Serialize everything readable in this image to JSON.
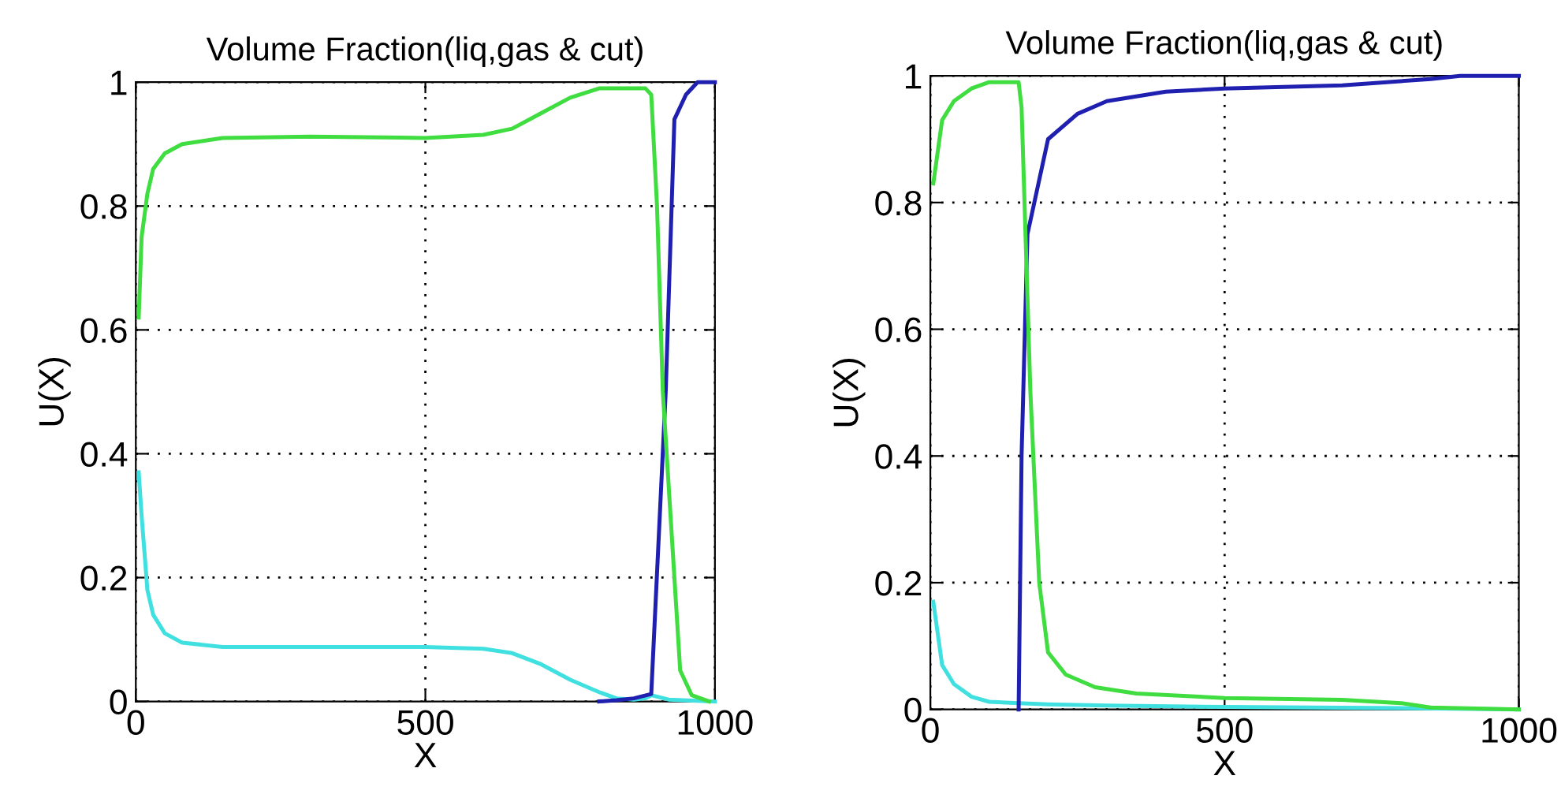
{
  "chart_data": [
    {
      "type": "line",
      "title": "Volume Fraction(liq,gas & cut)",
      "xlabel": "X",
      "ylabel": "U(X)",
      "xlim": [
        0,
        1000
      ],
      "ylim": [
        0,
        1
      ],
      "xticks": [
        0,
        500,
        1000
      ],
      "yticks": [
        0,
        0.2,
        0.4,
        0.6,
        0.8,
        1
      ],
      "grid": true,
      "line_style": "solid",
      "series": [
        {
          "color": "#40e0e0",
          "x": [
            5,
            10,
            20,
            30,
            50,
            80,
            150,
            500,
            600,
            650,
            700,
            750,
            800,
            830,
            860,
            880,
            890,
            920,
            1000
          ],
          "values": [
            0.37,
            0.3,
            0.18,
            0.14,
            0.11,
            0.095,
            0.088,
            0.088,
            0.085,
            0.078,
            0.06,
            0.035,
            0.015,
            0.005,
            0.003,
            0.005,
            0.01,
            0.003,
            0
          ]
        },
        {
          "color": "#2020b0",
          "x": [
            800,
            830,
            860,
            890,
            915,
            930,
            950,
            970,
            1000
          ],
          "values": [
            0,
            0.002,
            0.005,
            0.012,
            0.5,
            0.94,
            0.98,
            1,
            1
          ]
        },
        {
          "color": "#40dd40",
          "x": [
            5,
            10,
            20,
            30,
            50,
            80,
            150,
            300,
            500,
            600,
            650,
            700,
            750,
            800,
            880,
            890,
            900,
            910,
            930,
            940,
            960,
            990
          ],
          "values": [
            0.62,
            0.75,
            0.82,
            0.86,
            0.885,
            0.9,
            0.91,
            0.912,
            0.91,
            0.915,
            0.925,
            0.95,
            0.975,
            0.99,
            0.99,
            0.98,
            0.8,
            0.5,
            0.2,
            0.05,
            0.01,
            0
          ]
        }
      ]
    },
    {
      "type": "line",
      "title": "Volume Fraction(liq,gas & cut)",
      "xlabel": "X",
      "ylabel": "U(X)",
      "xlim": [
        0,
        1000
      ],
      "ylim": [
        0,
        1
      ],
      "xticks": [
        0,
        500,
        1000
      ],
      "yticks": [
        0,
        0.2,
        0.4,
        0.6,
        0.8,
        1
      ],
      "grid": true,
      "line_style": "solid",
      "series": [
        {
          "color": "#40e0e0",
          "x": [
            5,
            20,
            40,
            70,
            100,
            150,
            200,
            300,
            500,
            800,
            1000
          ],
          "values": [
            0.17,
            0.07,
            0.04,
            0.02,
            0.012,
            0.01,
            0.008,
            0.006,
            0.004,
            0.002,
            0
          ]
        },
        {
          "color": "#2020b0",
          "x": [
            150,
            155,
            165,
            200,
            250,
            300,
            400,
            500,
            700,
            850,
            900,
            1000
          ],
          "values": [
            0,
            0.4,
            0.75,
            0.9,
            0.94,
            0.96,
            0.975,
            0.98,
            0.985,
            0.995,
            1,
            1
          ]
        },
        {
          "color": "#40dd40",
          "x": [
            5,
            20,
            40,
            70,
            100,
            150,
            155,
            170,
            185,
            200,
            230,
            280,
            350,
            500,
            700,
            800,
            850,
            1000
          ],
          "values": [
            0.83,
            0.93,
            0.96,
            0.98,
            0.99,
            0.99,
            0.95,
            0.5,
            0.2,
            0.09,
            0.055,
            0.035,
            0.025,
            0.018,
            0.015,
            0.01,
            0.003,
            0
          ]
        }
      ]
    }
  ]
}
